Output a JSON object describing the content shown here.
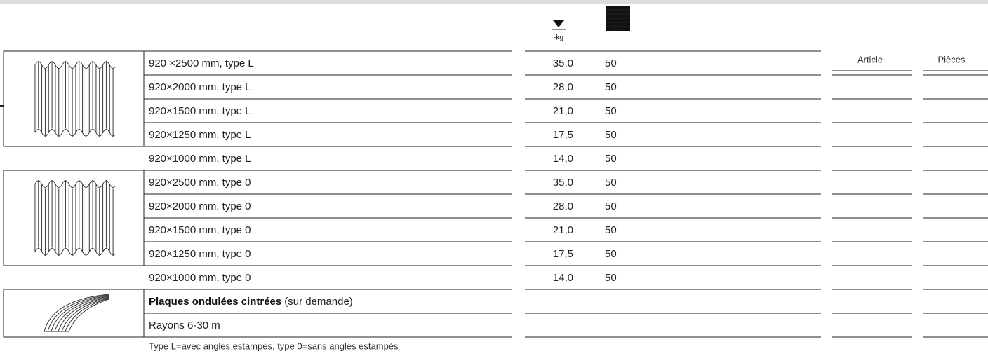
{
  "header": {
    "weight_unit": "-kg",
    "article": "Article",
    "pieces": "Pièces"
  },
  "rows": [
    {
      "description": "920 ×2500 mm, type L",
      "weight": "35,0",
      "per_pallet": 50
    },
    {
      "description": "920×2000 mm, type L",
      "weight": "28,0",
      "per_pallet": 50
    },
    {
      "description": "920×1500 mm, type L",
      "weight": "21,0",
      "per_pallet": 50
    },
    {
      "description": "920×1250 mm, type L",
      "weight": "17,5",
      "per_pallet": 50
    },
    {
      "description": "920×1000 mm, type L",
      "weight": "14,0",
      "per_pallet": 50
    },
    {
      "description": "920×2500 mm, type 0",
      "weight": "35,0",
      "per_pallet": 50
    },
    {
      "description": "920×2000 mm, type 0",
      "weight": "28,0",
      "per_pallet": 50
    },
    {
      "description": "920×1500 mm, type 0",
      "weight": "21,0",
      "per_pallet": 50
    },
    {
      "description": "920×1250 mm, type 0",
      "weight": "17,5",
      "per_pallet": 50
    },
    {
      "description": "920×1000 mm, type 0",
      "weight": "14,0",
      "per_pallet": 50
    },
    {
      "description": "Plaques ondulées cintrées",
      "note": "(sur demande)"
    },
    {
      "description": "Rayons 6-30 m"
    }
  ],
  "footnote": "Type L=avec angles estampés, type 0=sans angles estampés"
}
